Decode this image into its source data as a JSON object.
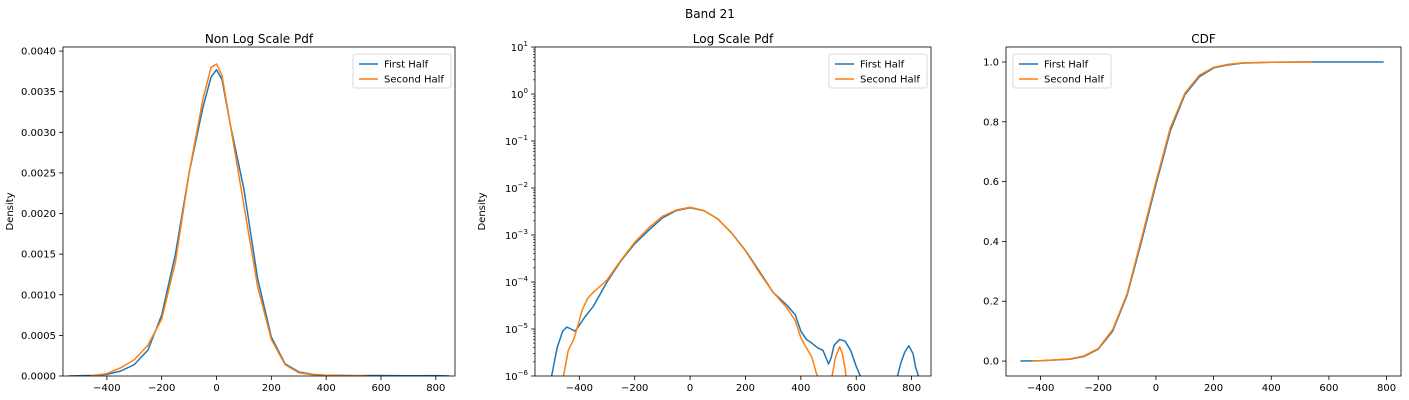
{
  "figure": {
    "suptitle": "Band 21"
  },
  "colors": {
    "first_half": "#1f77b4",
    "second_half": "#ff7f0e"
  },
  "chart_data": [
    {
      "type": "line",
      "title": "Non Log Scale Pdf",
      "xlabel": "",
      "ylabel": "Density",
      "xlim": [
        -560,
        870
      ],
      "ylim": [
        0,
        0.00405
      ],
      "yscale": "linear",
      "xticks": [
        -400,
        -200,
        0,
        200,
        400,
        600,
        800
      ],
      "xtick_labels": [
        "−400",
        "−200",
        "0",
        "200",
        "400",
        "600",
        "800"
      ],
      "yticks": [
        0,
        0.0005,
        0.001,
        0.0015,
        0.002,
        0.0025,
        0.003,
        0.0035,
        0.004
      ],
      "ytick_labels": [
        "0.0000",
        "0.0005",
        "0.0010",
        "0.0015",
        "0.0020",
        "0.0025",
        "0.0030",
        "0.0035",
        "0.0040"
      ],
      "grid": false,
      "legend": "top-right",
      "series": [
        {
          "name": "First Half",
          "x": [
            -540,
            -450,
            -400,
            -350,
            -300,
            -250,
            -200,
            -150,
            -100,
            -50,
            -20,
            0,
            20,
            50,
            100,
            150,
            200,
            250,
            300,
            350,
            400,
            500,
            600,
            700,
            800,
            850
          ],
          "y": [
            0,
            8e-06,
            2e-05,
            6e-05,
            0.00014,
            0.00032,
            0.00075,
            0.0015,
            0.0025,
            0.0033,
            0.00368,
            0.00377,
            0.00365,
            0.0031,
            0.0023,
            0.0012,
            0.00048,
            0.00015,
            5e-05,
            2e-05,
            1e-05,
            4e-06,
            6e-06,
            3e-06,
            4e-06,
            0
          ]
        },
        {
          "name": "Second Half",
          "x": [
            -460,
            -400,
            -350,
            -300,
            -250,
            -200,
            -150,
            -100,
            -50,
            -20,
            0,
            20,
            50,
            100,
            150,
            200,
            250,
            300,
            350,
            400,
            450,
            500,
            550
          ],
          "y": [
            0,
            3e-05,
            0.0001,
            0.0002,
            0.00038,
            0.0007,
            0.0014,
            0.0025,
            0.0034,
            0.0038,
            0.00384,
            0.0037,
            0.0031,
            0.0021,
            0.0011,
            0.00045,
            0.00014,
            4e-05,
            1.5e-05,
            8e-06,
            4e-06,
            5e-06,
            0
          ]
        }
      ]
    },
    {
      "type": "line",
      "title": "Log Scale Pdf",
      "xlabel": "",
      "ylabel": "Density",
      "xlim": [
        -560,
        870
      ],
      "ylim": [
        1e-06,
        10
      ],
      "yscale": "log",
      "xticks": [
        -400,
        -200,
        0,
        200,
        400,
        600,
        800
      ],
      "xtick_labels": [
        "−400",
        "−200",
        "0",
        "200",
        "400",
        "600",
        "800"
      ],
      "yticks": [
        1e-06,
        1e-05,
        0.0001,
        0.001,
        0.01,
        0.1,
        1,
        10
      ],
      "ytick_labels": [
        {
          "base": "10",
          "exp": "−6"
        },
        {
          "base": "10",
          "exp": "−5"
        },
        {
          "base": "10",
          "exp": "−4"
        },
        {
          "base": "10",
          "exp": "−3"
        },
        {
          "base": "10",
          "exp": "−2"
        },
        {
          "base": "10",
          "exp": "−1"
        },
        {
          "base": "10",
          "exp": "0"
        },
        {
          "base": "10",
          "exp": "1"
        }
      ],
      "grid": false,
      "legend": "top-right",
      "series": [
        {
          "name": "First Half",
          "segments": [
            {
              "x": [
                -500,
                -480,
                -460,
                -445,
                -430,
                -415,
                -400,
                -380,
                -350,
                -300,
                -250,
                -200,
                -150,
                -100,
                -50,
                0,
                50,
                100,
                150,
                200,
                250,
                300,
                350,
                380,
                400,
                420,
                440,
                460,
                480,
                500,
                510,
                520,
                540,
                560,
                580,
                600,
                615,
                625
              ],
              "y": [
                1e-06,
                4e-06,
                9e-06,
                1.1e-05,
                1e-05,
                9e-06,
                1.2e-05,
                1.8e-05,
                3e-05,
                0.0001,
                0.00028,
                0.00065,
                0.00125,
                0.0023,
                0.0033,
                0.0038,
                0.0033,
                0.0022,
                0.0011,
                0.00047,
                0.00017,
                6e-05,
                3.2e-05,
                2e-05,
                9e-06,
                6e-06,
                5e-06,
                4e-06,
                3.5e-06,
                1.8e-06,
                2.5e-06,
                4.5e-06,
                6e-06,
                5.5e-06,
                3.5e-06,
                1.6e-06,
                1e-06,
                8e-07
              ]
            },
            {
              "x": [
                745,
                760,
                775,
                790,
                805,
                815,
                830
              ],
              "y": [
                8e-07,
                1.8e-06,
                3.2e-06,
                4.4e-06,
                3e-06,
                1.5e-06,
                8e-07
              ]
            }
          ]
        },
        {
          "name": "Second Half",
          "segments": [
            {
              "x": [
                -460,
                -440,
                -420,
                -405,
                -390,
                -370,
                -350,
                -300,
                -250,
                -200,
                -150,
                -100,
                -50,
                0,
                50,
                100,
                150,
                200,
                250,
                300,
                350,
                380,
                400,
                420,
                440,
                455,
                465
              ],
              "y": [
                8e-07,
                3.5e-06,
                6e-06,
                1.2e-05,
                2.5e-05,
                4.5e-05,
                6e-05,
                0.00011,
                0.00029,
                0.0007,
                0.0014,
                0.0025,
                0.0034,
                0.0039,
                0.0033,
                0.0022,
                0.0011,
                0.00046,
                0.00016,
                6e-05,
                2.8e-05,
                1.5e-05,
                6.5e-06,
                4e-06,
                2.5e-06,
                1.2e-06,
                8e-07
              ]
            },
            {
              "x": [
                510,
                525,
                540,
                550,
                560,
                565
              ],
              "y": [
                8e-07,
                2.5e-06,
                4.2e-06,
                3e-06,
                1.4e-06,
                8e-07
              ]
            }
          ]
        }
      ]
    },
    {
      "type": "line",
      "title": "CDF",
      "xlabel": "",
      "ylabel": "",
      "xlim": [
        -520,
        850
      ],
      "ylim": [
        -0.05,
        1.05
      ],
      "yscale": "linear",
      "xticks": [
        -400,
        -200,
        0,
        200,
        400,
        600,
        800
      ],
      "xtick_labels": [
        "−400",
        "−200",
        "0",
        "200",
        "400",
        "600",
        "800"
      ],
      "yticks": [
        0,
        0.2,
        0.4,
        0.6,
        0.8,
        1.0
      ],
      "ytick_labels": [
        "0.0",
        "0.2",
        "0.4",
        "0.6",
        "0.8",
        "1.0"
      ],
      "grid": false,
      "legend": "top-left",
      "series": [
        {
          "name": "First Half",
          "x": [
            -470,
            -400,
            -300,
            -250,
            -200,
            -150,
            -100,
            -50,
            0,
            50,
            100,
            150,
            200,
            250,
            300,
            400,
            500,
            600,
            700,
            790
          ],
          "y": [
            0,
            0.001,
            0.006,
            0.015,
            0.04,
            0.1,
            0.22,
            0.4,
            0.59,
            0.77,
            0.89,
            0.95,
            0.98,
            0.99,
            0.996,
            0.999,
            1.0,
            1.0,
            1.0,
            1.0
          ]
        },
        {
          "name": "Second Half",
          "x": [
            -430,
            -400,
            -300,
            -250,
            -200,
            -150,
            -100,
            -50,
            0,
            50,
            100,
            150,
            200,
            250,
            300,
            400,
            540
          ],
          "y": [
            0,
            0.001,
            0.007,
            0.017,
            0.042,
            0.105,
            0.225,
            0.41,
            0.6,
            0.78,
            0.895,
            0.955,
            0.982,
            0.992,
            0.997,
            0.999,
            1.0
          ]
        }
      ]
    }
  ]
}
